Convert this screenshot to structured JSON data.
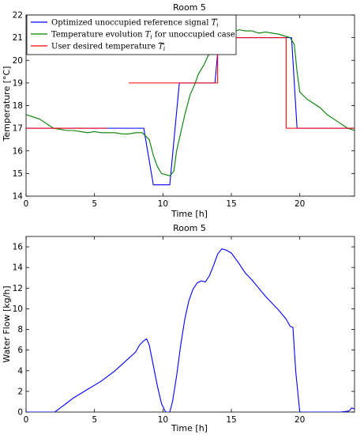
{
  "chart_data": [
    {
      "type": "line",
      "title": "Room 5",
      "xlabel": "Time [h]",
      "ylabel": "Temperature [°C]",
      "xlim": [
        0,
        24
      ],
      "ylim": [
        14,
        22
      ],
      "xticks": [
        "0",
        "5",
        "10",
        "15",
        "20"
      ],
      "yticks": [
        "14",
        "15",
        "16",
        "17",
        "18",
        "19",
        "20",
        "21",
        "22"
      ],
      "legend_position": "top-left",
      "grid": false,
      "legend": [
        {
          "text": "Optimized unoccupied reference signal ",
          "sym": "T",
          "sub": "i",
          "accent": "bar"
        },
        {
          "text": "Temperature evolution ",
          "sym": "T",
          "sub": "i",
          "tail": " for unoccupied case"
        },
        {
          "text": "User desired temperature ",
          "sym": "T",
          "sub": "i",
          "accent": "tilde"
        }
      ],
      "series": [
        {
          "color": "#0000ff",
          "x": [
            0,
            8.6,
            9.3,
            10.5,
            11.2,
            13.8,
            14.1,
            19.4,
            19.8,
            24
          ],
          "y": [
            17,
            17,
            14.5,
            14.5,
            19,
            19,
            21,
            21,
            17,
            17
          ]
        },
        {
          "color": "#008000",
          "x": [
            0,
            0.5,
            1,
            1.5,
            2,
            2.5,
            3,
            3.5,
            4,
            4.5,
            5,
            5.5,
            6,
            6.5,
            7,
            7.5,
            8,
            8.5,
            9,
            9.3,
            9.6,
            9.9,
            10.2,
            10.5,
            10.8,
            11.0,
            11.3,
            11.6,
            12,
            12.3,
            12.6,
            13,
            13.3,
            13.6,
            14,
            14.3,
            14.6,
            15,
            15.3,
            15.6,
            16,
            16.5,
            17,
            17.5,
            18,
            18.5,
            19,
            19.3,
            19.6,
            19.8,
            20,
            20.5,
            21,
            21.5,
            22,
            22.5,
            23,
            23.5,
            24
          ],
          "y": [
            17.6,
            17.5,
            17.4,
            17.2,
            17.0,
            16.95,
            16.9,
            16.9,
            16.85,
            16.8,
            16.85,
            16.8,
            16.8,
            16.8,
            16.75,
            16.75,
            16.8,
            16.8,
            16.5,
            15.8,
            15.3,
            15.0,
            14.95,
            14.9,
            15.1,
            16.0,
            16.8,
            17.6,
            18.5,
            18.9,
            19.4,
            19.8,
            20.2,
            20.5,
            20.8,
            20.95,
            21.05,
            21.2,
            21.3,
            21.35,
            21.3,
            21.3,
            21.2,
            21.25,
            21.2,
            21.15,
            21.05,
            21.0,
            20.7,
            19.5,
            18.6,
            18.3,
            18.1,
            17.9,
            17.6,
            17.4,
            17.2,
            17.0,
            16.9
          ]
        },
        {
          "color": "#ff0000",
          "x": [
            0,
            5.9
          ],
          "y": [
            17,
            17
          ]
        },
        {
          "color": "#ff0000",
          "x": [
            7.5,
            13,
            14,
            14,
            19,
            19,
            24
          ],
          "y": [
            19,
            19,
            19,
            21,
            21,
            17,
            17
          ]
        }
      ]
    },
    {
      "type": "line",
      "title": "Room 5",
      "xlabel": "Time [h]",
      "ylabel": "Water Flow [kg/h]",
      "xlim": [
        0,
        24
      ],
      "ylim": [
        0,
        17
      ],
      "xticks": [
        "0",
        "5",
        "10",
        "15",
        "20"
      ],
      "yticks": [
        "0",
        "2",
        "4",
        "6",
        "8",
        "10",
        "12",
        "14",
        "16"
      ],
      "grid": false,
      "series": [
        {
          "color": "#0000ff",
          "x": [
            0,
            2.1,
            2.5,
            3,
            3.5,
            4,
            4.5,
            5,
            5.5,
            6,
            6.5,
            7,
            7.5,
            8,
            8.3,
            8.6,
            8.8,
            9.0,
            9.3,
            9.6,
            9.9,
            10.2,
            10.5,
            10.7,
            11.0,
            11.3,
            11.6,
            11.9,
            12.2,
            12.5,
            12.8,
            13.1,
            13.4,
            13.7,
            14.0,
            14.3,
            14.6,
            15.0,
            15.5,
            16,
            16.5,
            17,
            17.5,
            18,
            18.5,
            19,
            19.3,
            19.5,
            19.7,
            20,
            21,
            22,
            23,
            23.6,
            23.8,
            24
          ],
          "y": [
            0,
            0,
            0.4,
            0.9,
            1.4,
            1.8,
            2.2,
            2.6,
            3.0,
            3.5,
            4.0,
            4.6,
            5.2,
            5.8,
            6.5,
            6.9,
            7.1,
            6.5,
            4.5,
            2.5,
            0.8,
            0,
            0,
            1.0,
            3.5,
            6.5,
            9.0,
            10.8,
            11.9,
            12.5,
            12.7,
            12.6,
            13.2,
            14.2,
            15.3,
            15.8,
            15.7,
            15.4,
            14.5,
            13.5,
            12.8,
            12.0,
            11.2,
            10.5,
            9.8,
            9.0,
            8.3,
            8.2,
            4.0,
            0,
            0,
            0,
            0,
            0.1,
            0.4,
            0.3
          ]
        }
      ]
    }
  ]
}
